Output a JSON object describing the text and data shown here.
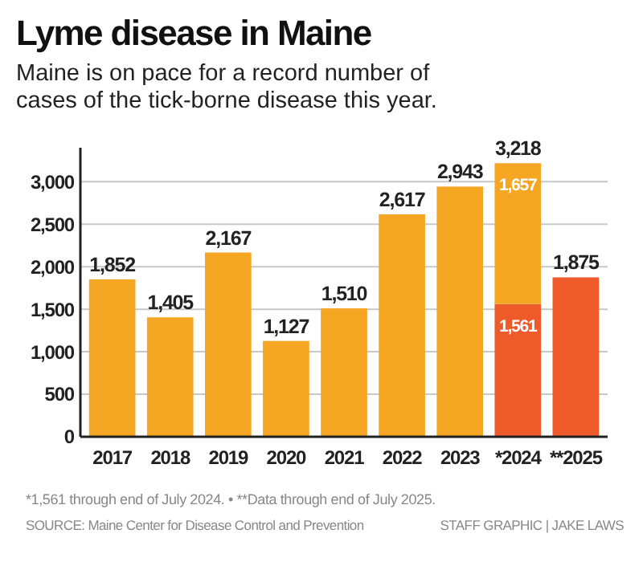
{
  "chart_data": {
    "type": "bar",
    "title": "Lyme disease in Maine",
    "subtitle": "Maine is on pace for a record number of cases of the tick-borne disease this year.",
    "categories": [
      "2017",
      "2018",
      "2019",
      "2020",
      "2021",
      "2022",
      "2023",
      "*2024",
      "**2025"
    ],
    "stacked": true,
    "series": [
      {
        "color": "#ee5a2a",
        "values": [
          null,
          null,
          null,
          null,
          null,
          null,
          null,
          1561,
          1875
        ],
        "value_labels": [
          null,
          null,
          null,
          null,
          null,
          null,
          null,
          "1,561",
          "1,875"
        ]
      },
      {
        "color": "#f5a623",
        "values": [
          1852,
          1405,
          2167,
          1127,
          1510,
          2617,
          2943,
          1657,
          null
        ],
        "value_labels": [
          "1,852",
          "1,405",
          "2,167",
          "1,127",
          "1,510",
          "2,617",
          "2,943",
          "1,657",
          null
        ]
      }
    ],
    "totals": [
      null,
      null,
      null,
      null,
      null,
      null,
      null,
      "3,218",
      null
    ],
    "ylim": [
      0,
      3400
    ],
    "yticks": [
      0,
      {
        "value": 500,
        "label": "500"
      },
      {
        "value": 1000,
        "label": "1,000"
      },
      {
        "value": 1500,
        "label": "1,500"
      },
      {
        "value": 2000,
        "label": "2,000"
      },
      {
        "value": 2500,
        "label": "2,500"
      },
      {
        "value": 3000,
        "label": "3,000"
      }
    ],
    "grid": "y",
    "annotations": [
      "*1,561 through end of July 2024. • **Data through end of July 2025.",
      "SOURCE: Maine Center for Disease Control and Prevention",
      "STAFF GRAPHIC | JAKE LAWS"
    ]
  }
}
